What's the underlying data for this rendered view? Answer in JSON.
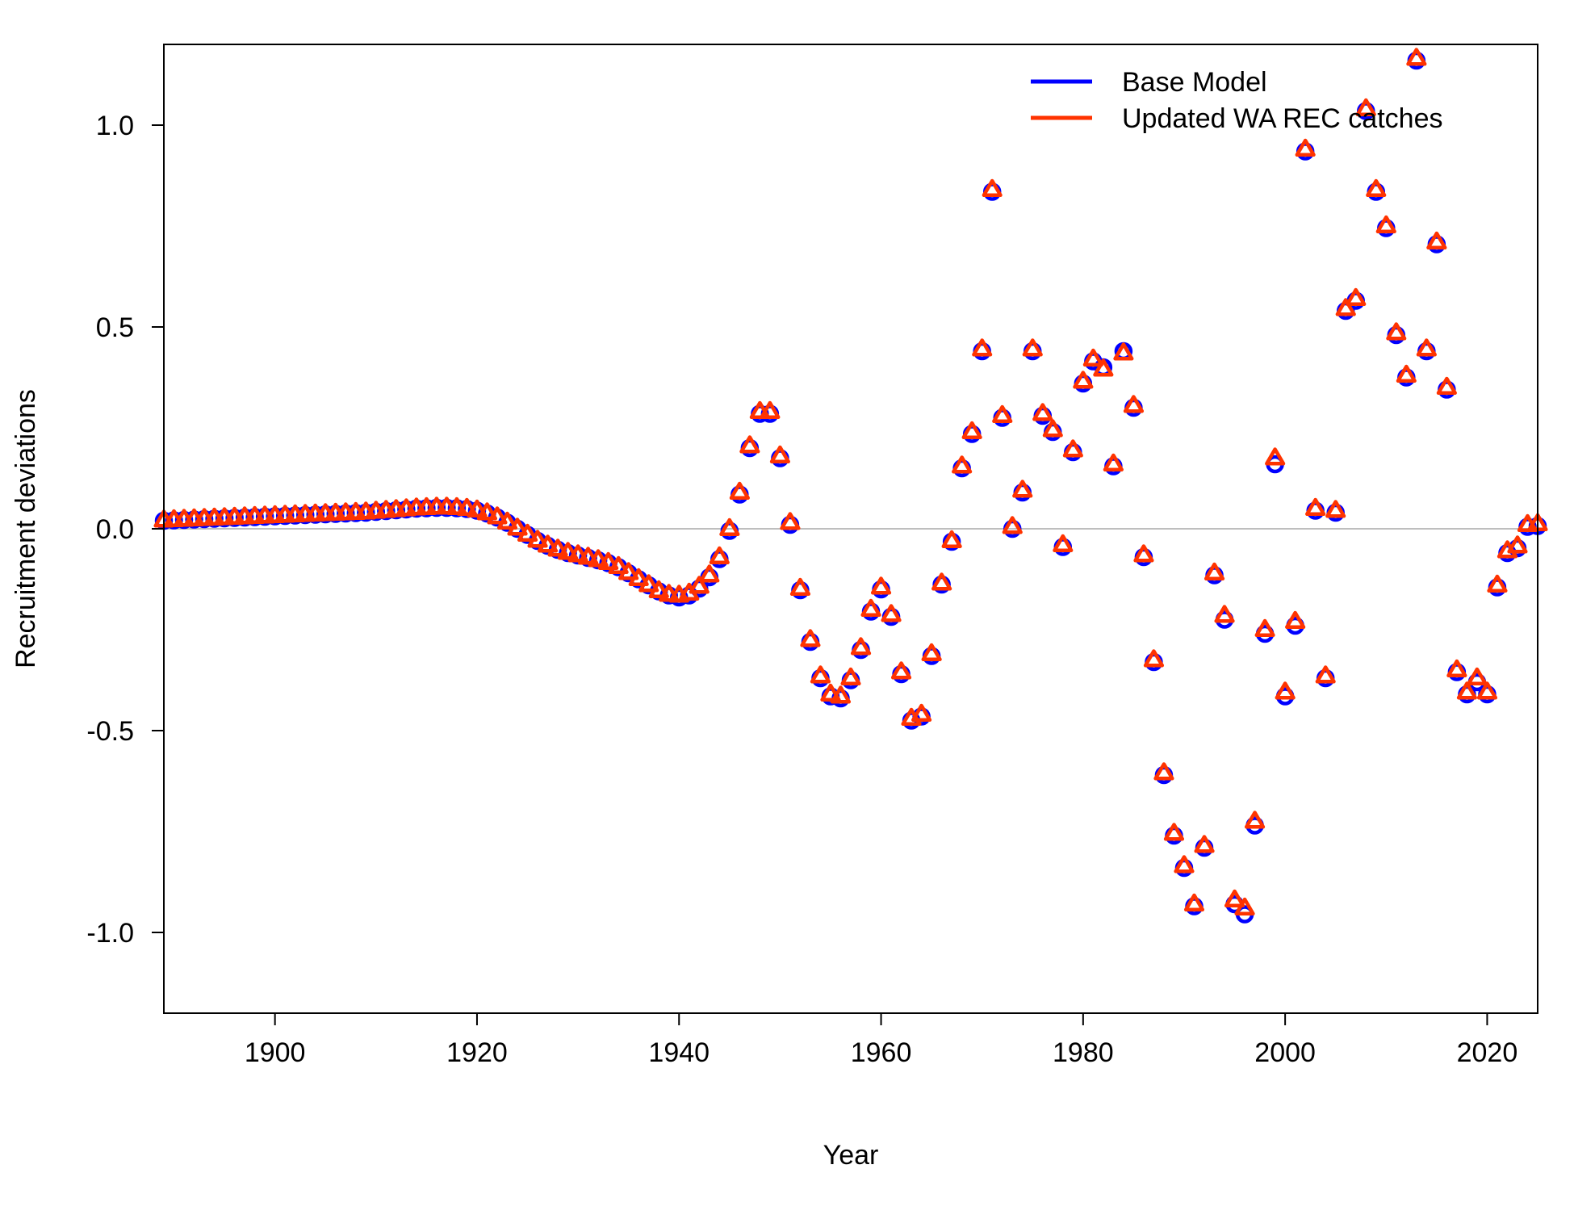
{
  "chart_data": {
    "type": "scatter",
    "xlabel": "Year",
    "ylabel": "Recruitment deviations",
    "xlim": [
      1889,
      2025
    ],
    "ylim": [
      -1.2,
      1.2
    ],
    "x_ticks": [
      1900,
      1920,
      1940,
      1960,
      1980,
      2000,
      2020
    ],
    "y_ticks": [
      -1.0,
      -0.5,
      0.0,
      0.5,
      1.0
    ],
    "y_tick_labels": [
      "-1.0",
      "-0.5",
      "0.0",
      "0.5",
      "1.0"
    ],
    "reference_line": 0,
    "grid": false,
    "legend_position": "top-right",
    "x": [
      1889,
      1890,
      1891,
      1892,
      1893,
      1894,
      1895,
      1896,
      1897,
      1898,
      1899,
      1900,
      1901,
      1902,
      1903,
      1904,
      1905,
      1906,
      1907,
      1908,
      1909,
      1910,
      1911,
      1912,
      1913,
      1914,
      1915,
      1916,
      1917,
      1918,
      1919,
      1920,
      1921,
      1922,
      1923,
      1924,
      1925,
      1926,
      1927,
      1928,
      1929,
      1930,
      1931,
      1932,
      1933,
      1934,
      1935,
      1936,
      1937,
      1938,
      1939,
      1940,
      1941,
      1942,
      1943,
      1944,
      1945,
      1946,
      1947,
      1948,
      1949,
      1950,
      1951,
      1952,
      1953,
      1954,
      1955,
      1956,
      1957,
      1958,
      1959,
      1960,
      1961,
      1962,
      1963,
      1964,
      1965,
      1966,
      1967,
      1968,
      1969,
      1970,
      1971,
      1972,
      1973,
      1974,
      1975,
      1976,
      1977,
      1978,
      1979,
      1980,
      1981,
      1982,
      1983,
      1984,
      1985,
      1986,
      1987,
      1988,
      1989,
      1990,
      1991,
      1992,
      1993,
      1994,
      1995,
      1996,
      1997,
      1998,
      1999,
      2000,
      2001,
      2002,
      2003,
      2004,
      2005,
      2006,
      2007,
      2008,
      2009,
      2010,
      2011,
      2012,
      2013,
      2014,
      2015,
      2016,
      2017,
      2018,
      2019,
      2020,
      2021,
      2022,
      2023,
      2024,
      2025
    ],
    "series": [
      {
        "name": "Base Model",
        "color": "#0000ff",
        "marker": "circle",
        "values": [
          0.02,
          0.021,
          0.022,
          0.023,
          0.024,
          0.025,
          0.026,
          0.027,
          0.028,
          0.029,
          0.03,
          0.031,
          0.032,
          0.033,
          0.034,
          0.035,
          0.036,
          0.037,
          0.038,
          0.039,
          0.04,
          0.042,
          0.044,
          0.046,
          0.048,
          0.05,
          0.051,
          0.052,
          0.052,
          0.051,
          0.049,
          0.045,
          0.038,
          0.028,
          0.015,
          0.0,
          -0.015,
          -0.03,
          -0.042,
          -0.052,
          -0.06,
          -0.066,
          -0.072,
          -0.078,
          -0.085,
          -0.095,
          -0.11,
          -0.125,
          -0.14,
          -0.155,
          -0.165,
          -0.17,
          -0.165,
          -0.148,
          -0.12,
          -0.075,
          -0.005,
          0.085,
          0.2,
          0.285,
          0.285,
          0.175,
          0.01,
          -0.152,
          -0.28,
          -0.37,
          -0.415,
          -0.42,
          -0.375,
          -0.3,
          -0.205,
          -0.15,
          -0.218,
          -0.36,
          -0.475,
          -0.465,
          -0.315,
          -0.138,
          -0.032,
          0.15,
          0.235,
          0.44,
          0.835,
          0.275,
          0.0,
          0.09,
          0.44,
          0.28,
          0.24,
          -0.045,
          0.19,
          0.36,
          0.415,
          0.4,
          0.155,
          0.44,
          0.3,
          -0.07,
          -0.33,
          -0.61,
          -0.76,
          -0.84,
          -0.935,
          -0.79,
          -0.115,
          -0.225,
          -0.93,
          -0.955,
          -0.735,
          -0.26,
          0.16,
          -0.415,
          -0.24,
          0.935,
          0.045,
          -0.37,
          0.04,
          0.54,
          0.565,
          1.035,
          0.835,
          0.745,
          0.48,
          0.375,
          1.16,
          0.44,
          0.705,
          0.345,
          -0.355,
          -0.41,
          -0.38,
          -0.41,
          -0.145,
          -0.06,
          -0.048,
          0.005,
          0.007
        ]
      },
      {
        "name": "Updated WA REC catches",
        "color": "#ff3300",
        "marker": "triangle",
        "values": [
          0.021,
          0.022,
          0.023,
          0.024,
          0.025,
          0.026,
          0.027,
          0.028,
          0.029,
          0.03,
          0.031,
          0.032,
          0.033,
          0.034,
          0.035,
          0.036,
          0.037,
          0.038,
          0.039,
          0.04,
          0.041,
          0.043,
          0.045,
          0.047,
          0.049,
          0.051,
          0.052,
          0.053,
          0.053,
          0.052,
          0.05,
          0.046,
          0.039,
          0.029,
          0.016,
          0.001,
          -0.014,
          -0.029,
          -0.041,
          -0.051,
          -0.059,
          -0.065,
          -0.071,
          -0.077,
          -0.084,
          -0.094,
          -0.109,
          -0.124,
          -0.139,
          -0.154,
          -0.163,
          -0.165,
          -0.16,
          -0.143,
          -0.115,
          -0.07,
          0.0,
          0.09,
          0.205,
          0.29,
          0.29,
          0.18,
          0.015,
          -0.148,
          -0.275,
          -0.365,
          -0.41,
          -0.415,
          -0.37,
          -0.295,
          -0.2,
          -0.145,
          -0.213,
          -0.355,
          -0.47,
          -0.46,
          -0.31,
          -0.135,
          -0.03,
          0.155,
          0.24,
          0.445,
          0.84,
          0.28,
          0.005,
          0.095,
          0.445,
          0.285,
          0.245,
          -0.04,
          0.195,
          0.365,
          0.42,
          0.395,
          0.16,
          0.435,
          0.305,
          -0.065,
          -0.325,
          -0.605,
          -0.755,
          -0.835,
          -0.93,
          -0.785,
          -0.11,
          -0.215,
          -0.92,
          -0.94,
          -0.725,
          -0.25,
          0.175,
          -0.405,
          -0.23,
          0.94,
          0.05,
          -0.365,
          0.045,
          0.545,
          0.57,
          1.04,
          0.84,
          0.75,
          0.485,
          0.38,
          1.165,
          0.445,
          0.71,
          0.35,
          -0.35,
          -0.405,
          -0.37,
          -0.405,
          -0.14,
          -0.055,
          -0.043,
          0.01,
          0.012
        ]
      }
    ]
  }
}
